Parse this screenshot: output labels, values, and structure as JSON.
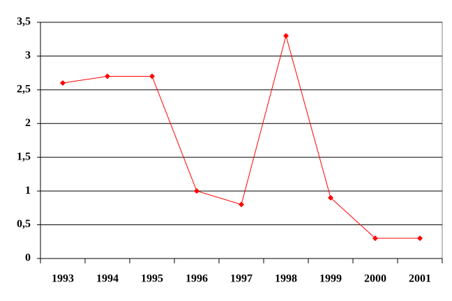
{
  "chart_data": {
    "type": "line",
    "categories": [
      "1993",
      "1994",
      "1995",
      "1996",
      "1997",
      "1998",
      "1999",
      "2000",
      "2001"
    ],
    "series": [
      {
        "color": "#ff0000",
        "values": [
          2.6,
          2.7,
          2.7,
          1.0,
          0.8,
          3.3,
          0.9,
          0.3,
          0.3
        ]
      }
    ],
    "ylim": [
      0,
      3.5
    ],
    "yticks": [
      0,
      {
        "value": 0.5,
        "label": "0,5"
      },
      1,
      {
        "value": 1.5,
        "label": "1,5"
      },
      2,
      {
        "value": 2.5,
        "label": "2,5"
      },
      3,
      {
        "value": 3.5,
        "label": "3,5"
      }
    ],
    "grid": true
  }
}
